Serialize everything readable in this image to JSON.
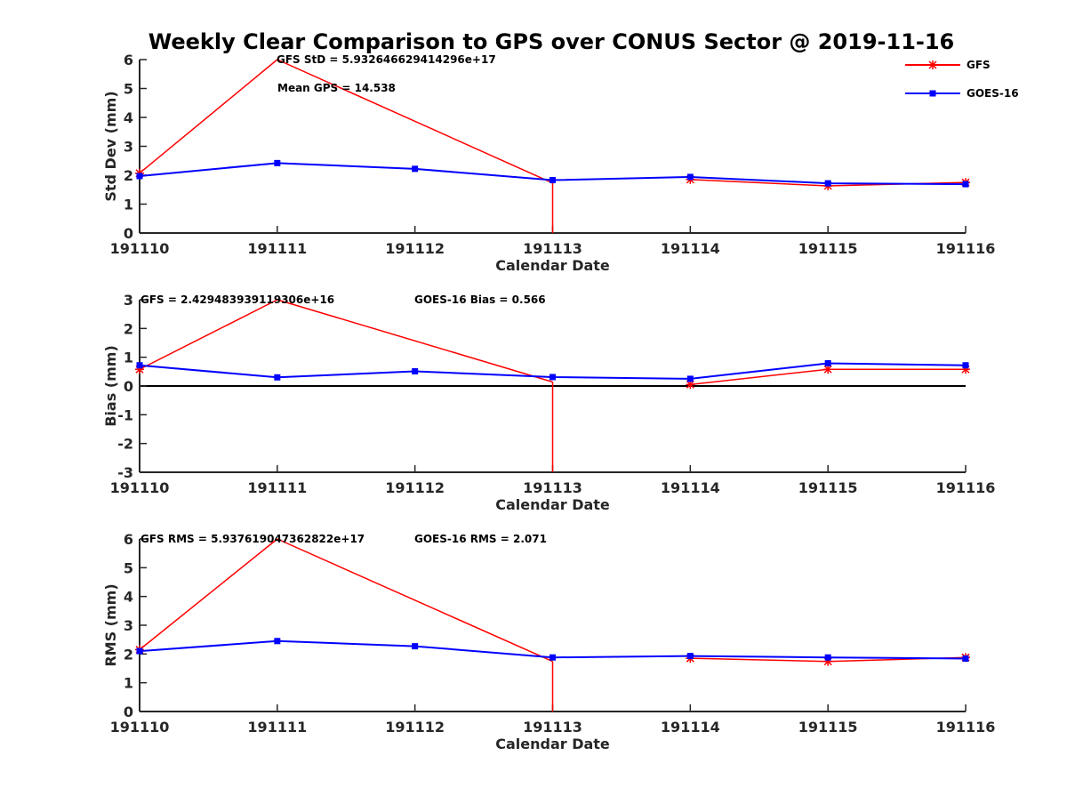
{
  "chart_data": {
    "type": "line",
    "title": "Weekly Clear Comparison to GPS over CONUS Sector @ 2019-11-16",
    "categories": [
      "191110",
      "191111",
      "191112",
      "191113",
      "191114",
      "191115",
      "191116"
    ],
    "legend": {
      "placement": "top-right",
      "entries": [
        "GFS",
        "GOES-16"
      ]
    },
    "colors": {
      "GFS": "#ff0000",
      "GOES-16": "#0000ff",
      "axis": "#262626",
      "zero": "#000000"
    },
    "panels": [
      {
        "key": "std",
        "ylabel": "Std Dev (mm)",
        "xlabel": "Calendar Date",
        "ylim": [
          0,
          6
        ],
        "yticks": [
          "0",
          "1",
          "2",
          "3",
          "4",
          "5",
          "6"
        ],
        "annotations": [
          "GFS StD = 5.932646629414296e+17",
          "Mean GPS = 14.538"
        ],
        "series": [
          {
            "name": "GFS",
            "values": [
              2.07,
              6.0,
              null,
              1.73,
              1.85,
              1.63,
              1.75
            ],
            "clipped": [
              false,
              true,
              false,
              true,
              false,
              false,
              false
            ]
          },
          {
            "name": "GOES-16",
            "values": [
              1.97,
              2.42,
              2.22,
              1.83,
              1.94,
              1.72,
              1.69
            ]
          }
        ]
      },
      {
        "key": "bias",
        "ylabel": "Bias (mm)",
        "xlabel": "Calendar Date",
        "ylim": [
          -3,
          3
        ],
        "yticks": [
          "-3",
          "-2",
          "-1",
          "0",
          "1",
          "2",
          "3"
        ],
        "zero_line": true,
        "annotations": [
          "GFS = 2.429483939119306e+16",
          "GOES-16 Bias  = 0.566"
        ],
        "series": [
          {
            "name": "GFS",
            "values": [
              0.58,
              3.0,
              null,
              0.14,
              0.05,
              0.58,
              0.58
            ],
            "clipped": [
              false,
              true,
              false,
              true,
              false,
              false,
              false
            ]
          },
          {
            "name": "GOES-16",
            "values": [
              0.72,
              0.3,
              0.51,
              0.31,
              0.25,
              0.79,
              0.72
            ]
          }
        ]
      },
      {
        "key": "rms",
        "ylabel": "RMS (mm)",
        "xlabel": "Calendar Date",
        "ylim": [
          0,
          6
        ],
        "yticks": [
          "0",
          "1",
          "2",
          "3",
          "4",
          "5",
          "6"
        ],
        "annotations": [
          "GFS RMS = 5.937619047362822e+17",
          "GOES-16 RMS = 2.071"
        ],
        "series": [
          {
            "name": "GFS",
            "values": [
              2.15,
              6.0,
              null,
              1.74,
              1.85,
              1.74,
              1.88
            ],
            "clipped": [
              false,
              true,
              false,
              true,
              false,
              false,
              false
            ]
          },
          {
            "name": "GOES-16",
            "values": [
              2.1,
              2.45,
              2.27,
              1.88,
              1.93,
              1.88,
              1.84
            ]
          }
        ]
      }
    ]
  }
}
